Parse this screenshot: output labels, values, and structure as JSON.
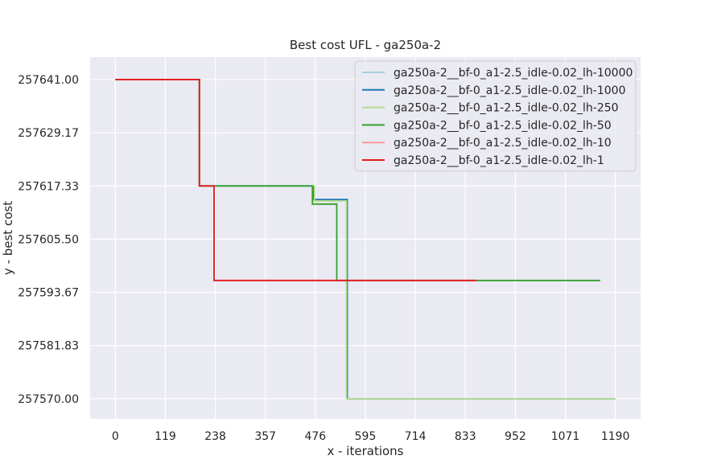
{
  "chart_data": {
    "type": "line",
    "title": "Best cost UFL - ga250a-2",
    "xlabel": "x - iterations",
    "ylabel": "y - best cost",
    "xlim": [
      -60,
      1250
    ],
    "ylim": [
      257565.5,
      257646.0
    ],
    "xticks": [
      0,
      119,
      238,
      357,
      476,
      595,
      714,
      833,
      952,
      1071,
      1190
    ],
    "xtick_labels": [
      "0",
      "119",
      "238",
      "357",
      "476",
      "595",
      "714",
      "833",
      "952",
      "1071",
      "1190"
    ],
    "yticks": [
      257641.0,
      257629.17,
      257617.33,
      257605.5,
      257593.67,
      257581.83,
      257570.0
    ],
    "ytick_labels": [
      "257641.00",
      "257629.17",
      "257617.33",
      "257605.50",
      "257593.67",
      "257581.83",
      "257570.00"
    ],
    "grid": true,
    "legend_position": "top-right",
    "series": [
      {
        "name": "ga250a-2__bf-0_a1-2.5_idle-0.02_lh-10000",
        "color": "#a6cee3",
        "x": [
          0,
          200,
          200,
          238,
          238,
          472,
          472,
          552,
          552,
          1190
        ],
        "y": [
          257641.0,
          257641.0,
          257617.33,
          257617.33,
          257617.33,
          257617.33,
          257614.3,
          257614.3,
          257570.0,
          257570.0
        ]
      },
      {
        "name": "ga250a-2__bf-0_a1-2.5_idle-0.02_lh-1000",
        "color": "#1f78b4",
        "x": [
          0,
          200,
          200,
          238,
          238,
          472,
          472,
          552,
          552,
          1190
        ],
        "y": [
          257641.0,
          257641.0,
          257617.33,
          257617.33,
          257617.33,
          257617.33,
          257614.3,
          257614.3,
          257570.0,
          257570.0
        ]
      },
      {
        "name": "ga250a-2__bf-0_a1-2.5_idle-0.02_lh-250",
        "color": "#b2df8a",
        "x": [
          0,
          200,
          200,
          238,
          238,
          474,
          474,
          550,
          550,
          1190
        ],
        "y": [
          257641.0,
          257641.0,
          257617.33,
          257617.33,
          257617.33,
          257617.33,
          257614.0,
          257614.0,
          257570.0,
          257570.0
        ]
      },
      {
        "name": "ga250a-2__bf-0_a1-2.5_idle-0.02_lh-50",
        "color": "#33a02c",
        "x": [
          0,
          200,
          200,
          238,
          238,
          469,
          469,
          527,
          527,
          1154
        ],
        "y": [
          257641.0,
          257641.0,
          257617.33,
          257617.33,
          257617.33,
          257617.33,
          257613.3,
          257613.3,
          257596.3,
          257596.3
        ]
      },
      {
        "name": "ga250a-2__bf-0_a1-2.5_idle-0.02_lh-10",
        "color": "#fb9a99",
        "x": [
          0,
          200,
          200,
          235,
          235,
          860
        ],
        "y": [
          257641.0,
          257641.0,
          257617.33,
          257617.33,
          257596.3,
          257596.3
        ]
      },
      {
        "name": "ga250a-2__bf-0_a1-2.5_idle-0.02_lh-1",
        "color": "#e31a1c",
        "x": [
          0,
          200,
          200,
          235,
          235,
          860
        ],
        "y": [
          257641.0,
          257641.0,
          257617.33,
          257617.33,
          257596.3,
          257596.3
        ]
      }
    ]
  }
}
